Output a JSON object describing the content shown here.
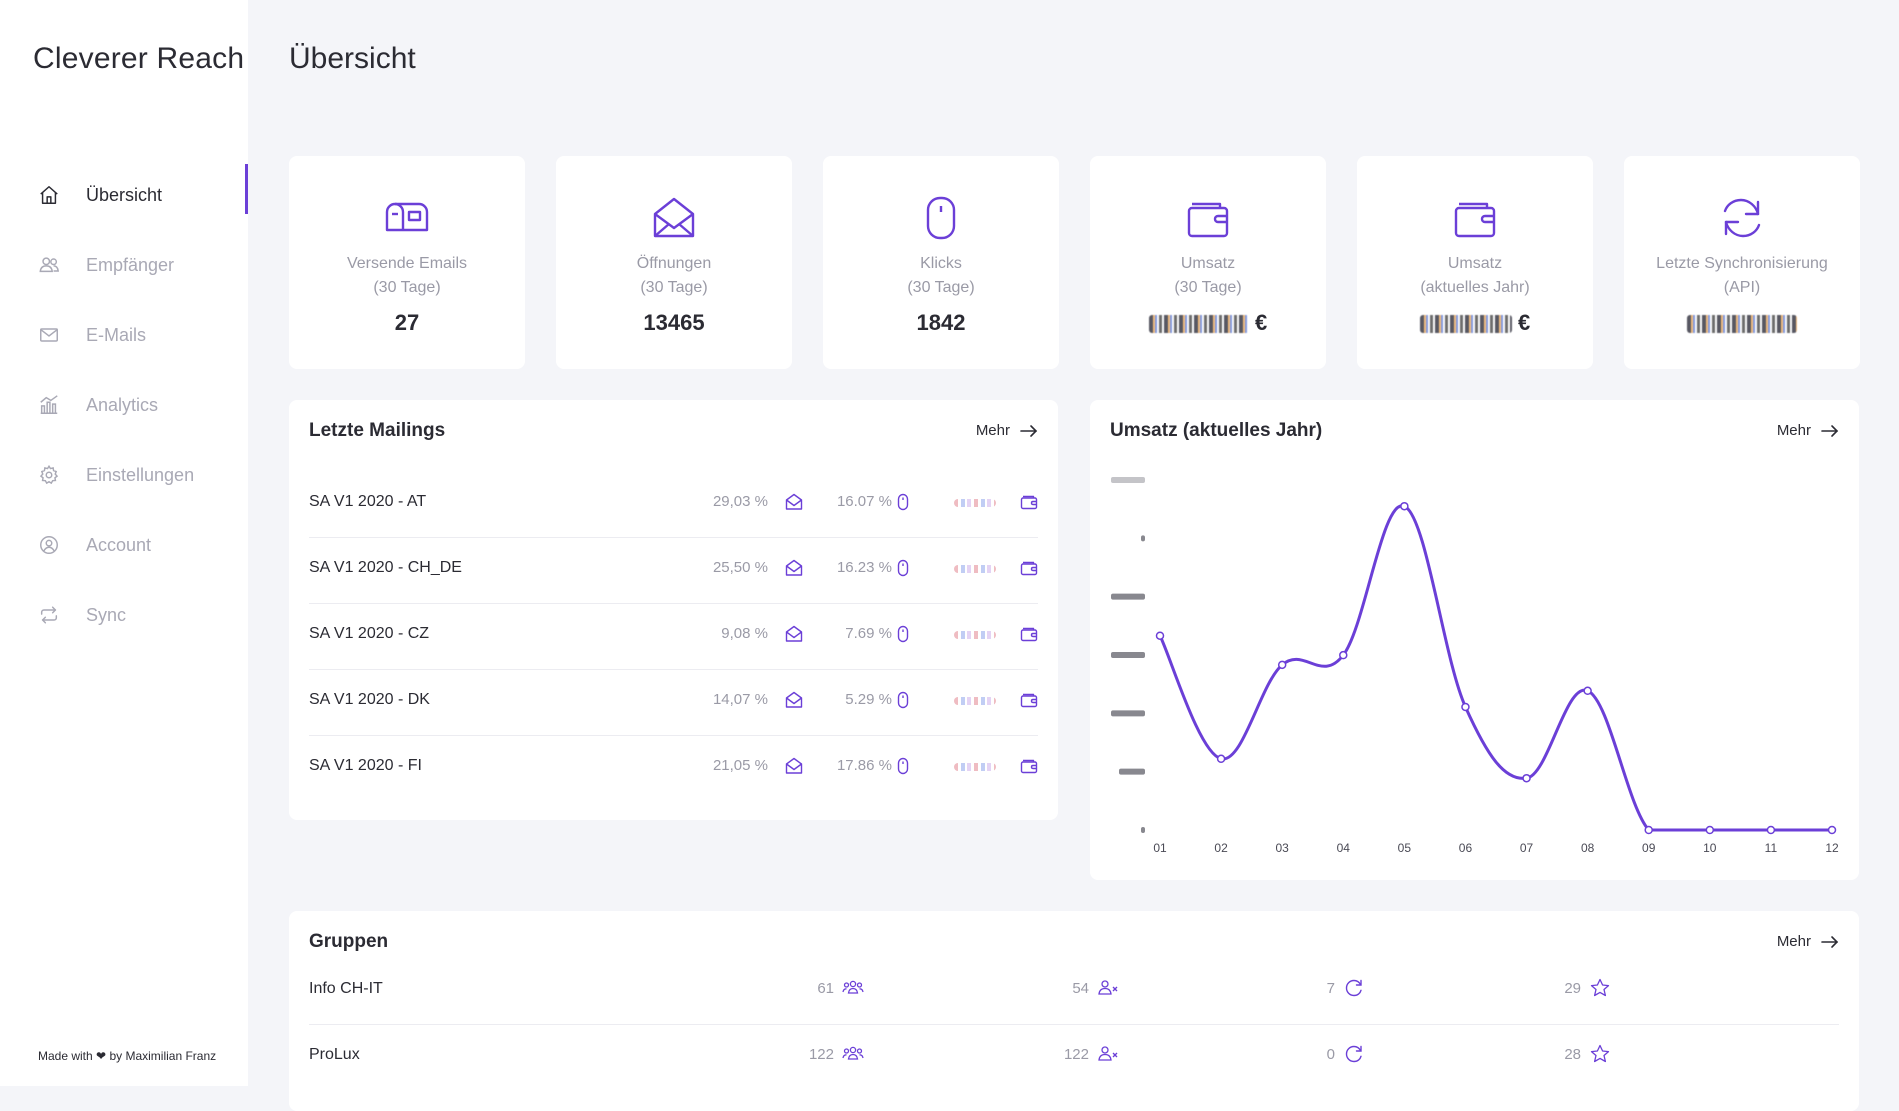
{
  "app": {
    "title": "Cleverer Reach"
  },
  "sidebar": {
    "items": [
      {
        "label": "Übersicht",
        "icon": "home-icon",
        "active": true
      },
      {
        "label": "Empfänger",
        "icon": "users-icon",
        "active": false
      },
      {
        "label": "E-Mails",
        "icon": "mail-icon",
        "active": false
      },
      {
        "label": "Analytics",
        "icon": "chart-icon",
        "active": false
      },
      {
        "label": "Einstellungen",
        "icon": "gear-icon",
        "active": false
      },
      {
        "label": "Account",
        "icon": "user-circle-icon",
        "active": false
      },
      {
        "label": "Sync",
        "icon": "sync-icon",
        "active": false
      }
    ],
    "footer": {
      "prefix": "Made with",
      "suffix": "by Maximilian Franz"
    }
  },
  "page": {
    "title": "Übersicht"
  },
  "stats": [
    {
      "icon": "mailbox-icon",
      "label1": "Versende Emails",
      "label2": "(30 Tage)",
      "value": "27"
    },
    {
      "icon": "envelope-open-icon",
      "label1": "Öffnungen",
      "label2": "(30 Tage)",
      "value": "13465"
    },
    {
      "icon": "mouse-icon",
      "label1": "Klicks",
      "label2": "(30 Tage)",
      "value": "1842"
    },
    {
      "icon": "wallet-icon",
      "label1": "Umsatz",
      "label2": "(30 Tage)",
      "value_suffix": "€"
    },
    {
      "icon": "wallet-icon",
      "label1": "Umsatz",
      "label2": "(aktuelles Jahr)",
      "value_suffix": "€"
    },
    {
      "icon": "refresh-icon",
      "label1": "Letzte Synchronisierung",
      "label2": "(API)"
    }
  ],
  "mailings": {
    "title": "Letzte Mailings",
    "more": "Mehr",
    "rows": [
      {
        "name": "SA V1 2020 - AT",
        "open_rate": "29,03 %",
        "click_rate": "16.07 %"
      },
      {
        "name": "SA V1 2020 - CH_DE",
        "open_rate": "25,50 %",
        "click_rate": "16.23 %"
      },
      {
        "name": "SA V1 2020 - CZ",
        "open_rate": "9,08 %",
        "click_rate": "7.69 %"
      },
      {
        "name": "SA V1 2020 - DK",
        "open_rate": "14,07 %",
        "click_rate": "5.29 %"
      },
      {
        "name": "SA V1 2020 - FI",
        "open_rate": "21,05 %",
        "click_rate": "17.86 %"
      }
    ]
  },
  "revenue": {
    "title": "Umsatz (aktuelles Jahr)",
    "more": "Mehr"
  },
  "chart_data": {
    "type": "line",
    "title": "Umsatz (aktuelles Jahr)",
    "x": [
      "01",
      "02",
      "03",
      "04",
      "05",
      "06",
      "07",
      "08",
      "09",
      "10",
      "11",
      "12"
    ],
    "series": [
      {
        "values": [
          0.6,
          0.22,
          0.51,
          0.54,
          1.0,
          0.38,
          0.16,
          0.43,
          0,
          0,
          0,
          0
        ]
      }
    ],
    "ylim": [
      0,
      1.05
    ],
    "color": "#6b3fd7"
  },
  "groups": {
    "title": "Gruppen",
    "more": "Mehr",
    "rows": [
      {
        "name": "Info CH-IT",
        "members": "61",
        "active": "54",
        "inactive": "7",
        "favorites": "29"
      },
      {
        "name": "ProLux",
        "members": "122",
        "active": "122",
        "inactive": "0",
        "favorites": "28"
      }
    ]
  },
  "colors": {
    "accent": "#6b3fd7",
    "background": "#f4f5f9",
    "muted": "#9a9aa6"
  }
}
